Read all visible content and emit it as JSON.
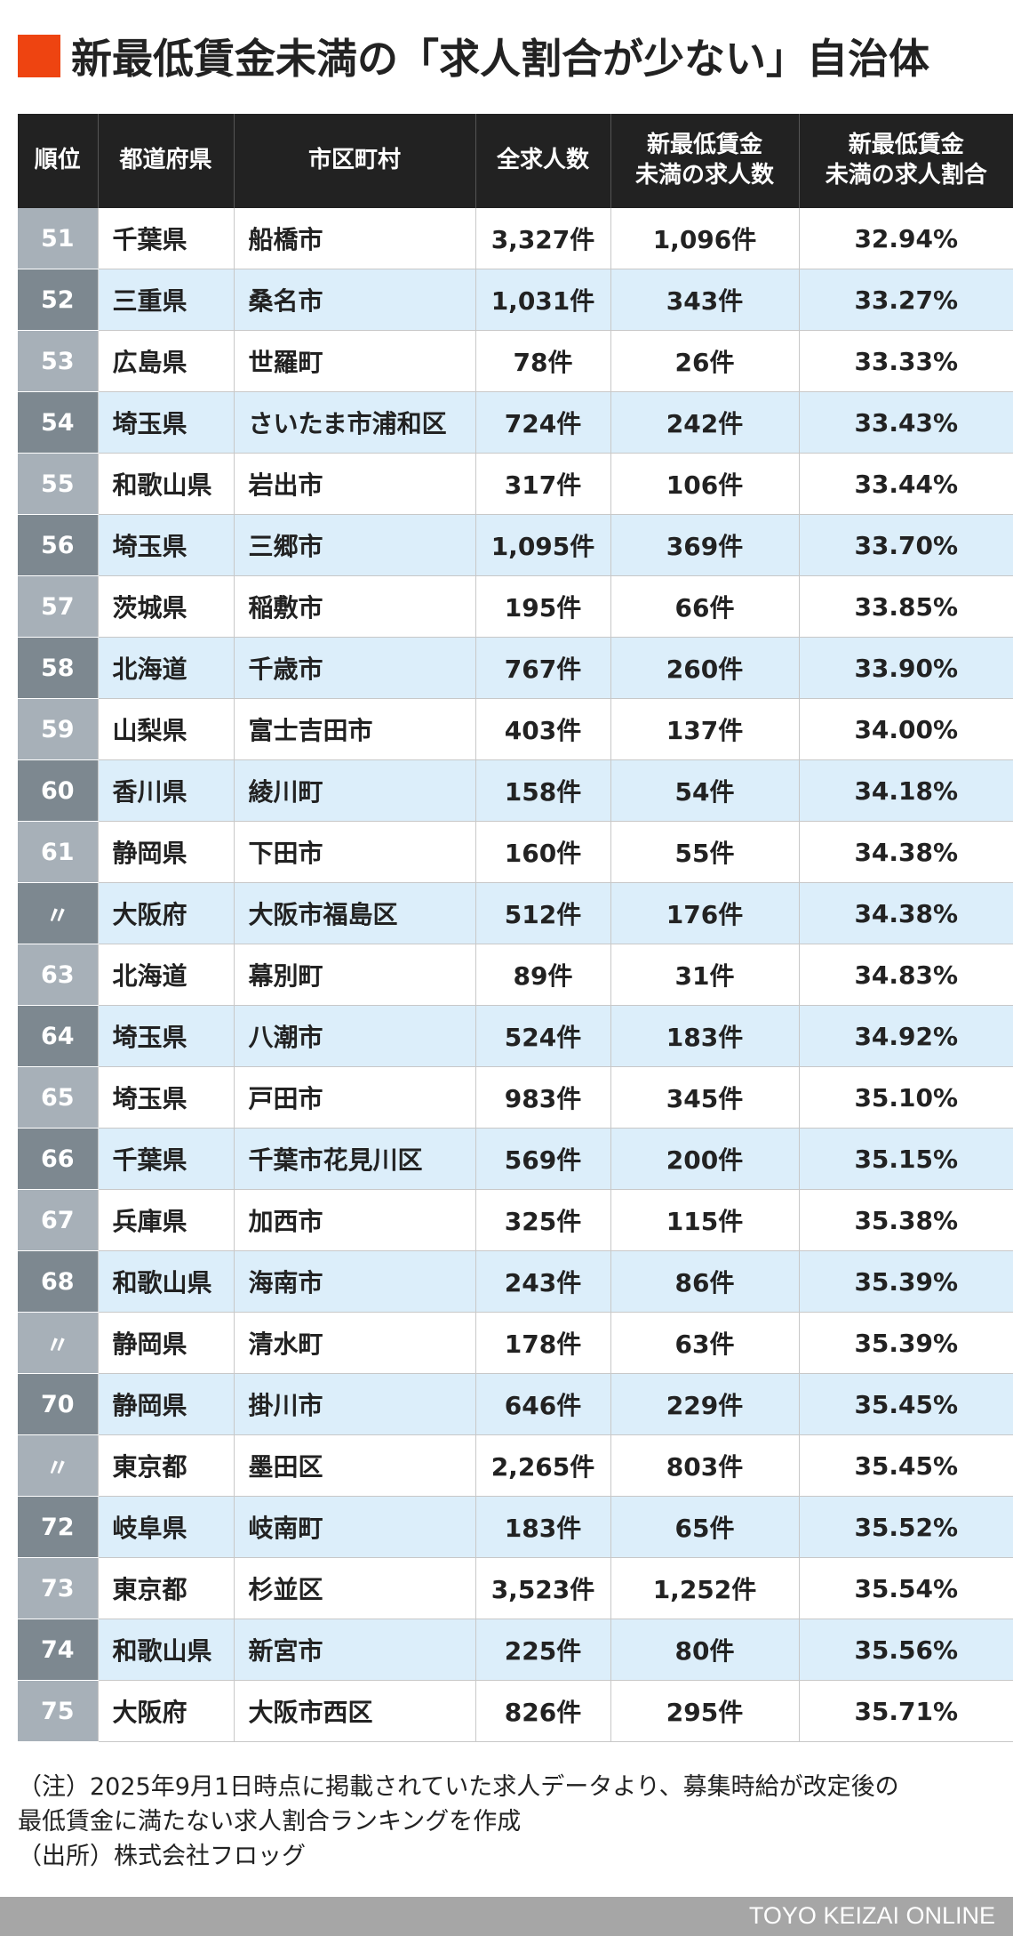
{
  "title": "新最低賃金未満の「求人割合が少ない」自治体",
  "table": {
    "headers": [
      "順位",
      "都道府県",
      "市区町村",
      "全求人数",
      "新最低賃金\n未満の求人数",
      "新最低賃金\n未満の求人割合"
    ],
    "rows": [
      [
        "51",
        "千葉県",
        "船橋市",
        "3,327件",
        "1,096件",
        "32.94%"
      ],
      [
        "52",
        "三重県",
        "桑名市",
        "1,031件",
        "343件",
        "33.27%"
      ],
      [
        "53",
        "広島県",
        "世羅町",
        "78件",
        "26件",
        "33.33%"
      ],
      [
        "54",
        "埼玉県",
        "さいたま市浦和区",
        "724件",
        "242件",
        "33.43%"
      ],
      [
        "55",
        "和歌山県",
        "岩出市",
        "317件",
        "106件",
        "33.44%"
      ],
      [
        "56",
        "埼玉県",
        "三郷市",
        "1,095件",
        "369件",
        "33.70%"
      ],
      [
        "57",
        "茨城県",
        "稲敷市",
        "195件",
        "66件",
        "33.85%"
      ],
      [
        "58",
        "北海道",
        "千歳市",
        "767件",
        "260件",
        "33.90%"
      ],
      [
        "59",
        "山梨県",
        "富士吉田市",
        "403件",
        "137件",
        "34.00%"
      ],
      [
        "60",
        "香川県",
        "綾川町",
        "158件",
        "54件",
        "34.18%"
      ],
      [
        "61",
        "静岡県",
        "下田市",
        "160件",
        "55件",
        "34.38%"
      ],
      [
        "〃",
        "大阪府",
        "大阪市福島区",
        "512件",
        "176件",
        "34.38%"
      ],
      [
        "63",
        "北海道",
        "幕別町",
        "89件",
        "31件",
        "34.83%"
      ],
      [
        "64",
        "埼玉県",
        "八潮市",
        "524件",
        "183件",
        "34.92%"
      ],
      [
        "65",
        "埼玉県",
        "戸田市",
        "983件",
        "345件",
        "35.10%"
      ],
      [
        "66",
        "千葉県",
        "千葉市花見川区",
        "569件",
        "200件",
        "35.15%"
      ],
      [
        "67",
        "兵庫県",
        "加西市",
        "325件",
        "115件",
        "35.38%"
      ],
      [
        "68",
        "和歌山県",
        "海南市",
        "243件",
        "86件",
        "35.39%"
      ],
      [
        "〃",
        "静岡県",
        "清水町",
        "178件",
        "63件",
        "35.39%"
      ],
      [
        "70",
        "静岡県",
        "掛川市",
        "646件",
        "229件",
        "35.45%"
      ],
      [
        "〃",
        "東京都",
        "墨田区",
        "2,265件",
        "803件",
        "35.45%"
      ],
      [
        "72",
        "岐阜県",
        "岐南町",
        "183件",
        "65件",
        "35.52%"
      ],
      [
        "73",
        "東京都",
        "杉並区",
        "3,523件",
        "1,252件",
        "35.54%"
      ],
      [
        "74",
        "和歌山県",
        "新宮市",
        "225件",
        "80件",
        "35.56%"
      ],
      [
        "75",
        "大阪府",
        "大阪市西区",
        "826件",
        "295件",
        "35.71%"
      ]
    ]
  },
  "notes": [
    "（注）2025年9月1日時点に掲載されていた求人データより、募集時給が改定後の",
    "最低賃金に満たない求人割合ランキングを作成",
    "（出所）株式会社フロッグ"
  ],
  "footer": "TOYO KEIZAI ONLINE",
  "colors": {
    "accent": "#ee4411",
    "header_bg": "#222222",
    "row_alt": "#dceefa",
    "rank_light": "#a7b0b8",
    "rank_dark": "#7d8890"
  }
}
